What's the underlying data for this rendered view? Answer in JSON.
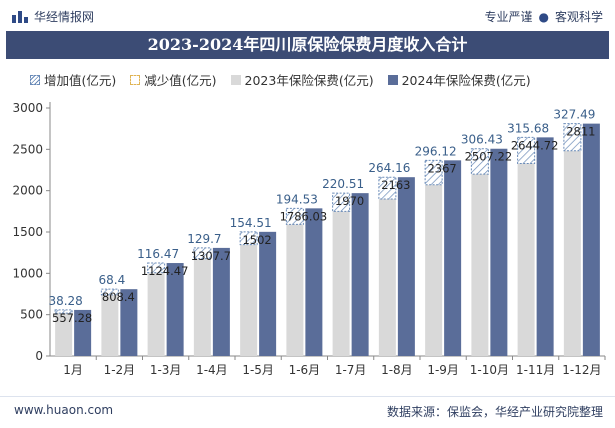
{
  "header": {
    "brand": "华经情报网",
    "tagline_left": "专业严谨",
    "tagline_right": "客观科学"
  },
  "title": "2023-2024年四川原保险保费月度收入合计",
  "legend": {
    "increase": "增加值(亿元)",
    "decrease": "减少值(亿元)",
    "y2023": "2023年保险保费(亿元)",
    "y2024": "2024年保险保费(亿元)"
  },
  "colors": {
    "y2023": "#d9d9d9",
    "y2024": "#5a6d99",
    "increase": "#6a8bb8",
    "increase_label": "#3a5f8a",
    "title_bg": "#3c4c75"
  },
  "chart_data": {
    "type": "bar",
    "categories": [
      "1月",
      "1-2月",
      "1-3月",
      "1-4月",
      "1-5月",
      "1-6月",
      "1-7月",
      "1-8月",
      "1-9月",
      "1-10月",
      "1-11月",
      "1-12月"
    ],
    "series": [
      {
        "name": "2023年保险保费(亿元)",
        "values": [
          518.96,
          740,
          1008,
          1178,
          1347.49,
          1591.5,
          1749.49,
          1898.84,
          2070.88,
          2200.79,
          2329.04,
          2483.51
        ]
      },
      {
        "name": "2024年保险保费(亿元)",
        "values": [
          557.28,
          808.4,
          1124.47,
          1307.7,
          1502,
          1786.03,
          1970,
          2163,
          2367,
          2507.22,
          2644.72,
          2811
        ]
      },
      {
        "name": "增加值(亿元)",
        "values": [
          38.28,
          68.4,
          116.47,
          129.7,
          154.51,
          194.53,
          220.51,
          264.16,
          296.12,
          306.43,
          315.68,
          327.49
        ]
      }
    ],
    "bar_labels": [
      "557.28",
      "808.4",
      "1124.47",
      "1307.7",
      "1502",
      "1786.03",
      "1970",
      "2163",
      "2367",
      "2507.22",
      "2644.72",
      "2811"
    ],
    "increase_labels": [
      "38.28",
      "68.4",
      "116.47",
      "129.7",
      "154.51",
      "194.53",
      "220.51",
      "264.16",
      "296.12",
      "306.43",
      "315.68",
      "327.49"
    ],
    "ylim": [
      0,
      3000
    ],
    "yticks": [
      "0",
      "500",
      "1000",
      "1500",
      "2000",
      "2500",
      "3000"
    ],
    "grid": false
  },
  "footer": {
    "site": "www.huaon.com",
    "source": "数据来源：保监会，华经产业研究院整理"
  }
}
